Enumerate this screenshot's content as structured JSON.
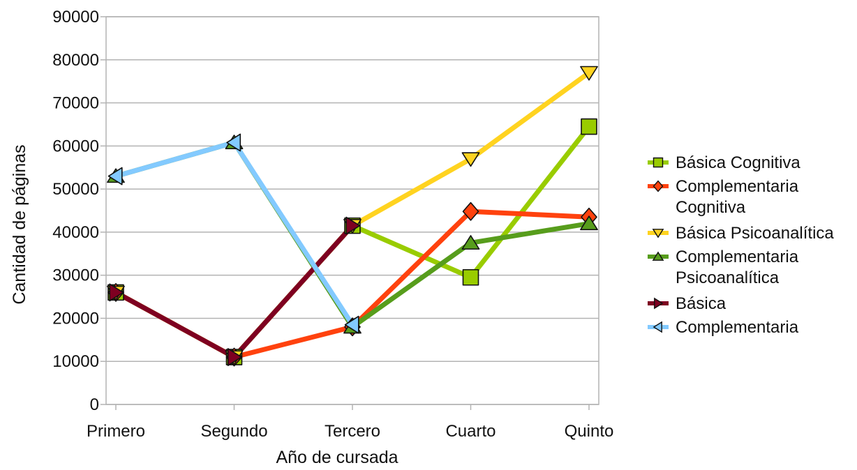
{
  "chart_data": {
    "type": "line",
    "title": "",
    "xlabel": "Año de cursada",
    "ylabel": "Cantidad de páginas",
    "categories": [
      "Primero",
      "Segundo",
      "Tercero",
      "Cuarto",
      "Quinto"
    ],
    "ylim": [
      0,
      90000
    ],
    "yticks": [
      0,
      10000,
      20000,
      30000,
      40000,
      50000,
      60000,
      70000,
      80000,
      90000
    ],
    "grid": "horizontal",
    "legend_position": "right",
    "series": [
      {
        "name": "Básica Cognitiva",
        "color": "#99cc00",
        "marker": "square",
        "values": [
          26000,
          11000,
          41500,
          29500,
          64500
        ]
      },
      {
        "name": "Complementaria Cognitiva",
        "legend_lines": [
          "Complementaria",
          "Cognitiva"
        ],
        "color": "#ff420e",
        "marker": "diamond",
        "values": [
          26000,
          11000,
          18000,
          44800,
          43500
        ]
      },
      {
        "name": "Básica Psicoanalítica",
        "color": "#ffd320",
        "marker": "triangle-down",
        "values": [
          26000,
          11000,
          41500,
          57000,
          77000
        ]
      },
      {
        "name": "Complementaria Psicoanalítica",
        "legend_lines": [
          "Complementaria",
          "Psicoanalítica"
        ],
        "color": "#579d1c",
        "marker": "triangle-up",
        "values": [
          53000,
          60800,
          18000,
          37500,
          42000
        ]
      },
      {
        "name": "Básica",
        "color": "#7e0021",
        "marker": "triangle-right",
        "values": [
          26000,
          11000,
          41500,
          null,
          null
        ]
      },
      {
        "name": "Complementaria",
        "color": "#83caff",
        "marker": "triangle-left",
        "values": [
          53000,
          60800,
          18500,
          null,
          null
        ]
      }
    ]
  }
}
